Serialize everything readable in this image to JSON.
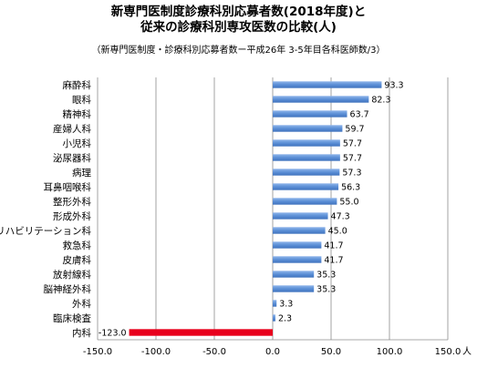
{
  "chart_data": {
    "type": "bar",
    "orientation": "horizontal",
    "title_line1": "新専門医制度診療科別応募者数(2018年度)と",
    "title_line2": "従来の診療科別専攻医数の比較(人)",
    "subtitle": "（新専門医制度・診療科別応募者数ー平成26年 3-5年目各科医師数/3）",
    "xlabel": "",
    "ylabel": "",
    "x_unit": "人",
    "xlim": [
      -150,
      150
    ],
    "xticks": [
      -150,
      -100,
      -50,
      0,
      50,
      100,
      150
    ],
    "xtick_labels": [
      "-150.0",
      "-100.0",
      "-50.0",
      "0.0",
      "50.0",
      "100.0",
      "150.0"
    ],
    "grid": "vertical",
    "categories": [
      "麻酔科",
      "眼科",
      "精神科",
      "産婦人科",
      "小児科",
      "泌尿器科",
      "病理",
      "耳鼻咽喉科",
      "整形外科",
      "形成外科",
      "リハビリテーション科",
      "救急科",
      "皮膚科",
      "放射線科",
      "脳神経外科",
      "外科",
      "臨床検査",
      "内科"
    ],
    "values": [
      93.3,
      82.3,
      63.7,
      59.7,
      57.7,
      57.7,
      57.3,
      56.3,
      55.0,
      47.3,
      45.0,
      41.7,
      41.7,
      35.3,
      35.3,
      3.3,
      2.3,
      -123.0
    ],
    "value_labels": [
      "93.3",
      "82.3",
      "63.7",
      "59.7",
      "57.7",
      "57.7",
      "57.3",
      "56.3",
      "55.0",
      "47.3",
      "45.0",
      "41.7",
      "41.7",
      "35.3",
      "35.3",
      "3.3",
      "2.3",
      "-123.0"
    ],
    "colors": {
      "positive": "#5b8fd6",
      "negative": "#e8001c"
    }
  }
}
